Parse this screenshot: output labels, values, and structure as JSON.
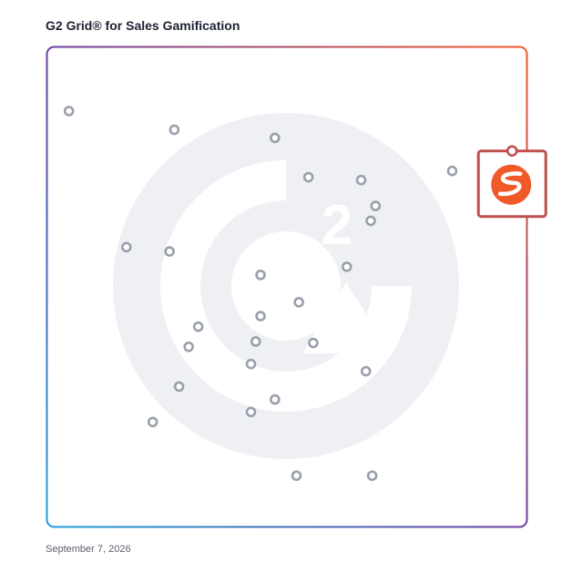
{
  "header": {
    "title": "G2 Grid® for Sales Gamification"
  },
  "footer": {
    "date": "September 7, 2026"
  },
  "colors": {
    "border_start": "#1d9fd9",
    "border_mid": "#6b3fa0",
    "border_end": "#f05a28",
    "quadrant_line": "#7a4a9c",
    "watermark": "#eef0f3",
    "point": "#9aa0ab",
    "highlight": "#c0504d",
    "brand": "#f05a28"
  },
  "highlight": {
    "name": "",
    "x": 97,
    "y": 78,
    "icon": "spinify-logo-icon"
  },
  "chart_data": {
    "type": "scatter",
    "title": "G2 Grid® for Sales Gamification",
    "xlabel": "",
    "ylabel": "",
    "xlim": [
      0,
      100
    ],
    "ylim": [
      0,
      100
    ],
    "grid": false,
    "quadrant_split": {
      "x": 50,
      "y": 50
    },
    "points": [
      {
        "x": 4.5,
        "y": 86.7
      },
      {
        "x": 26.5,
        "y": 82.8
      },
      {
        "x": 47.5,
        "y": 81.1
      },
      {
        "x": 54.5,
        "y": 72.9
      },
      {
        "x": 65.5,
        "y": 72.3
      },
      {
        "x": 84.5,
        "y": 74.2
      },
      {
        "x": 68.5,
        "y": 66.9
      },
      {
        "x": 67.5,
        "y": 63.8
      },
      {
        "x": 16.5,
        "y": 58.3
      },
      {
        "x": 25.5,
        "y": 57.4
      },
      {
        "x": 62.5,
        "y": 54.2
      },
      {
        "x": 44.5,
        "y": 52.5
      },
      {
        "x": 52.5,
        "y": 46.8
      },
      {
        "x": 44.5,
        "y": 43.9
      },
      {
        "x": 31.5,
        "y": 41.7
      },
      {
        "x": 43.5,
        "y": 38.6
      },
      {
        "x": 55.5,
        "y": 38.3
      },
      {
        "x": 29.5,
        "y": 37.5
      },
      {
        "x": 42.5,
        "y": 33.9
      },
      {
        "x": 66.5,
        "y": 32.4
      },
      {
        "x": 27.5,
        "y": 29.2
      },
      {
        "x": 47.5,
        "y": 26.5
      },
      {
        "x": 42.5,
        "y": 23.9
      },
      {
        "x": 22.0,
        "y": 21.8
      },
      {
        "x": 52.0,
        "y": 10.6
      },
      {
        "x": 67.8,
        "y": 10.6
      }
    ]
  }
}
